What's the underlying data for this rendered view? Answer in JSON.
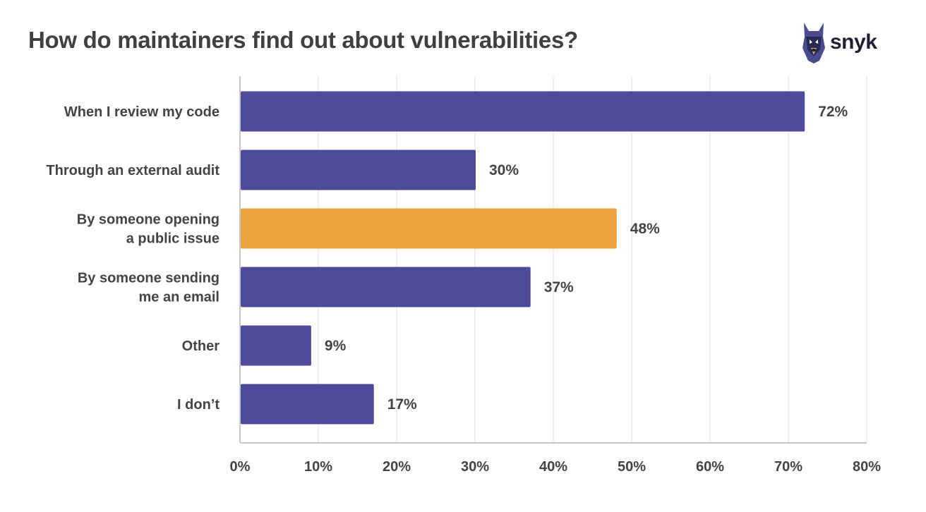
{
  "chart_data": {
    "type": "bar",
    "orientation": "horizontal",
    "title": "How do maintainers find out about vulnerabilities?",
    "categories": [
      "When I review my code",
      "Through an external audit",
      "By someone opening a public issue",
      "By someone sending me an email",
      "Other",
      "I don’t"
    ],
    "category_lines": [
      [
        "When I review my code"
      ],
      [
        "Through an external audit"
      ],
      [
        "By someone opening",
        "a public issue"
      ],
      [
        "By someone sending",
        "me an email"
      ],
      [
        "Other"
      ],
      [
        "I don’t"
      ]
    ],
    "values": [
      72,
      30,
      48,
      37,
      9,
      17
    ],
    "value_labels": [
      "72%",
      "30%",
      "48%",
      "37%",
      "9%",
      "17%"
    ],
    "highlight_index": 2,
    "xlim": [
      0,
      80
    ],
    "x_ticks": [
      0,
      10,
      20,
      30,
      40,
      50,
      60,
      70,
      80
    ],
    "x_tick_labels": [
      "0%",
      "10%",
      "20%",
      "30%",
      "40%",
      "50%",
      "60%",
      "70%",
      "80%"
    ],
    "grid": true,
    "colors": {
      "bar": "#504a9b",
      "highlight": "#eba43e",
      "grid": "#ececec",
      "axis": "#c9c9c9"
    }
  },
  "logo": {
    "text": "snyk",
    "icon": "snyk-doberman-icon"
  }
}
